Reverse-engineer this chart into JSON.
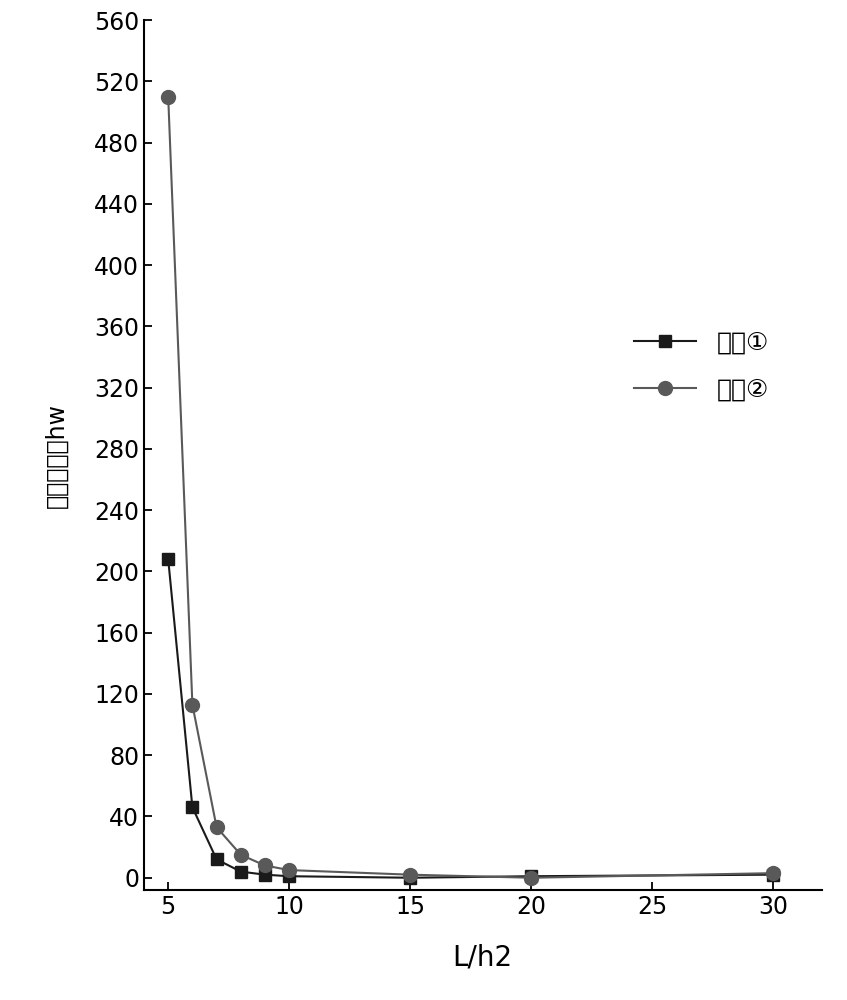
{
  "series1_x": [
    5,
    6,
    7,
    8,
    9,
    10,
    15,
    20,
    30
  ],
  "series1_y": [
    208,
    46,
    12,
    4,
    2,
    1,
    0,
    1,
    2
  ],
  "series2_x": [
    5,
    6,
    7,
    8,
    9,
    10,
    15,
    20,
    30
  ],
  "series2_y": [
    510,
    113,
    33,
    15,
    8,
    5,
    2,
    0,
    3
  ],
  "series1_label": "实例①",
  "series2_label": "实例②",
  "series1_color": "#1a1a1a",
  "series2_color": "#595959",
  "xlabel": "L/h2",
  "ylabel": "临界水头巪hw",
  "xlim": [
    4,
    32
  ],
  "ylim": [
    -8,
    560
  ],
  "yticks": [
    0,
    40,
    80,
    120,
    160,
    200,
    240,
    280,
    320,
    360,
    400,
    440,
    480,
    520,
    560
  ],
  "xticks": [
    5,
    10,
    15,
    20,
    25,
    30
  ],
  "background_color": "#ffffff",
  "xlabel_fontsize": 20,
  "ylabel_fontsize": 17,
  "tick_fontsize": 17,
  "legend_fontsize": 18,
  "line_width": 1.5,
  "marker_size_square": 9,
  "marker_size_circle": 10
}
